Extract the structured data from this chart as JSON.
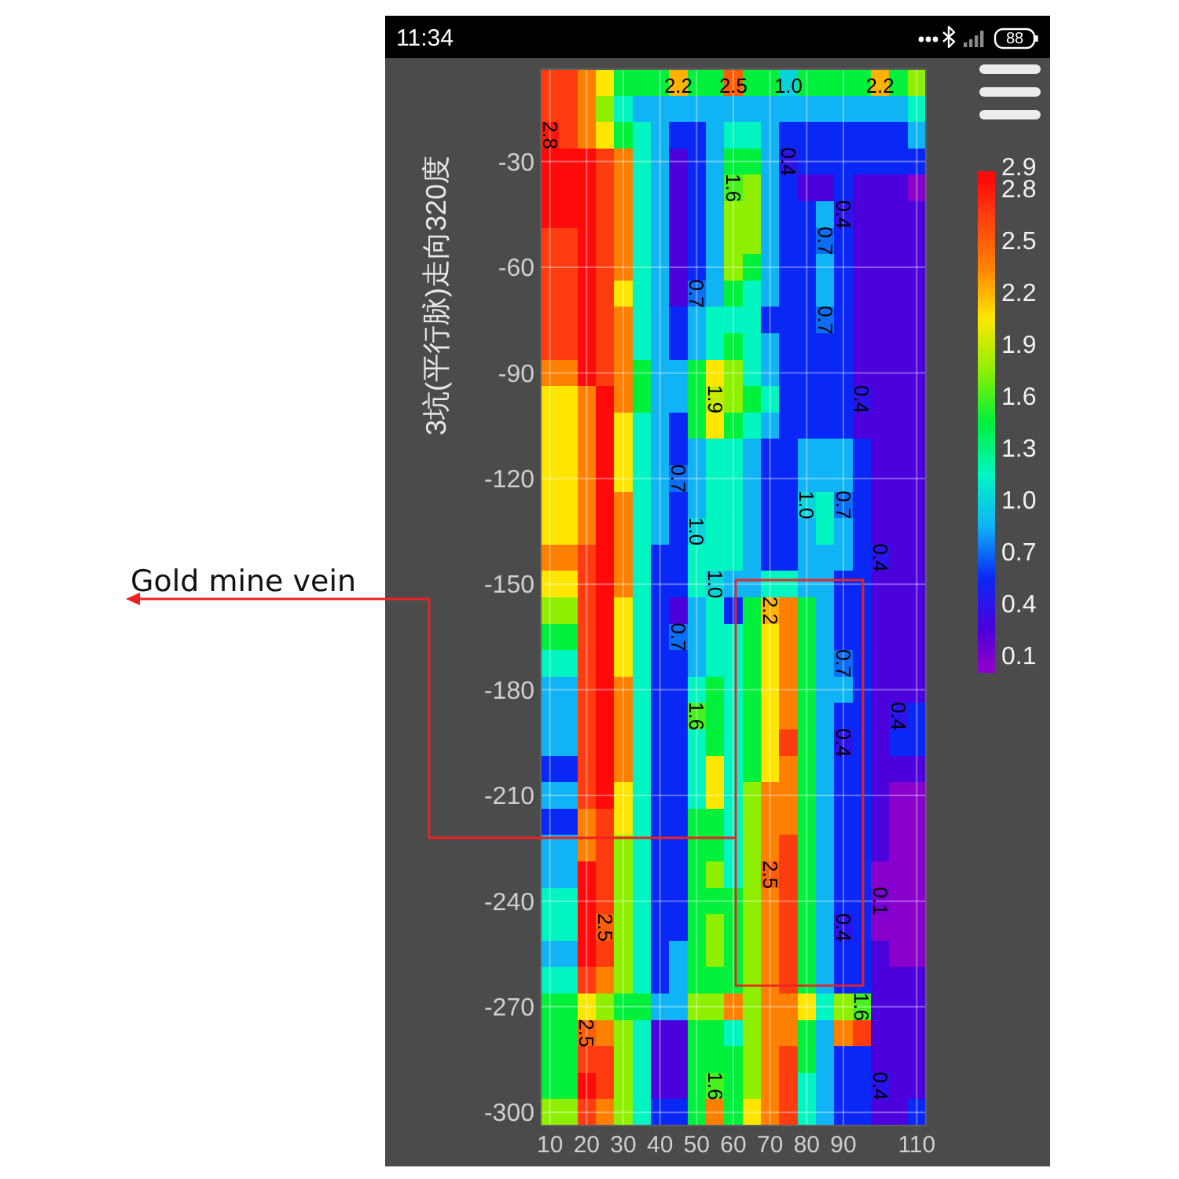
{
  "chart_data": {
    "type": "heatmap",
    "ylabel": "3坑(平行脉)走向320度",
    "categories": [
      "10",
      null,
      "20",
      null,
      "30",
      null,
      "40",
      null,
      "50",
      null,
      "60",
      null,
      "70",
      null,
      "80",
      null,
      "90",
      null,
      null,
      null,
      "110"
    ],
    "y_categories": [
      null,
      null,
      null,
      "-30",
      null,
      null,
      null,
      "-60",
      null,
      null,
      null,
      "-90",
      null,
      null,
      null,
      "-120",
      null,
      null,
      null,
      "-150",
      null,
      null,
      null,
      "-180",
      null,
      null,
      null,
      "-210",
      null,
      null,
      null,
      "-240",
      null,
      null,
      null,
      "-270",
      null,
      null,
      null,
      "-300"
    ],
    "cells": [
      [
        2.65,
        2.65,
        2.35,
        2.05,
        1.45,
        1.45,
        1.45,
        2.2,
        1.45,
        1.45,
        2.5,
        1.45,
        1.45,
        1.0,
        1.45,
        1.45,
        1.45,
        1.45,
        2.2,
        1.45,
        1.75
      ],
      [
        2.65,
        2.65,
        2.35,
        1.75,
        1.15,
        0.85,
        0.85,
        0.85,
        0.85,
        0.85,
        0.85,
        0.85,
        0.85,
        0.85,
        0.85,
        0.85,
        0.85,
        0.85,
        0.85,
        0.85,
        1.15
      ],
      [
        2.8,
        2.65,
        2.35,
        2.05,
        1.45,
        1.15,
        0.85,
        0.55,
        0.55,
        0.85,
        1.15,
        1.15,
        0.85,
        0.55,
        0.55,
        0.55,
        0.55,
        0.55,
        0.55,
        0.55,
        0.85
      ],
      [
        2.85,
        2.85,
        2.85,
        2.65,
        2.35,
        1.15,
        0.85,
        0.25,
        0.55,
        0.85,
        1.45,
        1.45,
        0.85,
        0.4,
        0.55,
        0.55,
        0.55,
        0.55,
        0.55,
        0.55,
        0.55
      ],
      [
        2.85,
        2.85,
        2.85,
        2.65,
        2.35,
        1.15,
        0.85,
        0.25,
        0.55,
        0.85,
        1.6,
        1.75,
        0.85,
        0.55,
        0.25,
        0.25,
        0.55,
        0.25,
        0.25,
        0.25,
        0.05
      ],
      [
        2.85,
        2.85,
        2.85,
        2.65,
        2.35,
        1.15,
        0.85,
        0.25,
        0.55,
        0.85,
        1.75,
        1.75,
        0.85,
        0.55,
        0.55,
        0.85,
        0.4,
        0.25,
        0.25,
        0.25,
        0.25
      ],
      [
        2.65,
        2.65,
        2.85,
        2.65,
        2.35,
        1.15,
        0.85,
        0.25,
        0.55,
        0.85,
        1.75,
        1.75,
        0.85,
        0.55,
        0.55,
        0.7,
        0.55,
        0.25,
        0.25,
        0.25,
        0.25
      ],
      [
        2.65,
        2.65,
        2.85,
        2.65,
        2.35,
        1.15,
        0.85,
        0.25,
        0.55,
        0.85,
        1.75,
        1.45,
        0.85,
        0.55,
        0.55,
        0.85,
        0.55,
        0.25,
        0.25,
        0.25,
        0.25
      ],
      [
        2.65,
        2.65,
        2.85,
        2.65,
        2.05,
        1.15,
        0.85,
        0.25,
        0.7,
        0.85,
        1.45,
        1.15,
        0.85,
        0.55,
        0.55,
        0.85,
        0.55,
        0.25,
        0.25,
        0.25,
        0.25
      ],
      [
        2.65,
        2.65,
        2.85,
        2.65,
        2.35,
        1.15,
        0.85,
        0.55,
        0.85,
        1.15,
        1.15,
        1.15,
        0.55,
        0.55,
        0.55,
        0.7,
        0.55,
        0.25,
        0.25,
        0.25,
        0.25
      ],
      [
        2.65,
        2.65,
        2.85,
        2.65,
        2.35,
        1.15,
        0.85,
        0.55,
        0.85,
        1.15,
        1.45,
        1.15,
        0.85,
        0.55,
        0.55,
        0.55,
        0.55,
        0.25,
        0.25,
        0.25,
        0.25
      ],
      [
        2.35,
        2.35,
        2.85,
        2.65,
        2.35,
        1.45,
        0.85,
        0.85,
        1.45,
        2.05,
        1.75,
        1.15,
        0.85,
        0.55,
        0.55,
        0.55,
        0.55,
        0.25,
        0.25,
        0.25,
        0.25
      ],
      [
        2.05,
        2.05,
        2.35,
        2.85,
        2.35,
        1.45,
        0.85,
        0.85,
        1.45,
        1.9,
        1.75,
        1.45,
        1.15,
        0.55,
        0.55,
        0.55,
        0.55,
        0.4,
        0.25,
        0.25,
        0.25
      ],
      [
        2.05,
        2.05,
        2.35,
        2.85,
        2.05,
        1.15,
        0.85,
        0.55,
        1.45,
        2.05,
        1.45,
        1.15,
        0.85,
        0.55,
        0.55,
        0.55,
        0.55,
        0.25,
        0.25,
        0.25,
        0.25
      ],
      [
        2.05,
        2.05,
        2.35,
        2.85,
        2.05,
        1.15,
        0.85,
        0.55,
        0.85,
        1.15,
        1.15,
        0.85,
        0.55,
        0.55,
        0.85,
        0.85,
        0.85,
        0.55,
        0.25,
        0.25,
        0.25
      ],
      [
        2.05,
        2.05,
        2.35,
        2.85,
        2.05,
        1.15,
        0.85,
        0.7,
        0.85,
        1.15,
        1.15,
        0.85,
        0.55,
        0.55,
        0.85,
        0.85,
        0.85,
        0.55,
        0.25,
        0.25,
        0.25
      ],
      [
        2.05,
        2.05,
        2.35,
        2.85,
        2.35,
        1.15,
        0.85,
        0.55,
        0.85,
        1.15,
        1.15,
        0.85,
        0.55,
        0.55,
        1.0,
        1.15,
        0.7,
        0.55,
        0.25,
        0.25,
        0.25
      ],
      [
        2.05,
        2.05,
        2.35,
        2.85,
        2.35,
        1.15,
        0.85,
        0.55,
        1.0,
        1.15,
        1.15,
        0.85,
        0.55,
        0.55,
        0.85,
        1.15,
        0.85,
        0.55,
        0.25,
        0.25,
        0.25
      ],
      [
        2.35,
        2.35,
        2.65,
        2.85,
        2.35,
        1.15,
        0.55,
        0.55,
        1.15,
        1.15,
        1.15,
        0.85,
        0.55,
        0.55,
        0.85,
        0.85,
        0.85,
        0.55,
        0.4,
        0.25,
        0.25
      ],
      [
        2.05,
        2.05,
        2.65,
        2.85,
        2.35,
        1.15,
        0.55,
        0.55,
        1.15,
        1.0,
        0.85,
        0.85,
        1.15,
        1.15,
        0.85,
        0.85,
        0.55,
        0.55,
        0.25,
        0.25,
        0.25
      ],
      [
        1.75,
        1.75,
        2.65,
        2.85,
        2.05,
        1.15,
        0.55,
        0.25,
        0.85,
        1.15,
        0.55,
        1.45,
        2.2,
        2.35,
        1.45,
        0.85,
        0.55,
        0.55,
        0.25,
        0.25,
        0.25
      ],
      [
        1.45,
        1.45,
        2.65,
        2.85,
        2.05,
        1.15,
        0.55,
        0.7,
        0.85,
        1.15,
        1.15,
        1.45,
        2.05,
        2.35,
        1.45,
        0.85,
        0.55,
        0.55,
        0.25,
        0.25,
        0.25
      ],
      [
        1.15,
        1.15,
        2.65,
        2.85,
        2.05,
        1.15,
        0.55,
        0.55,
        0.85,
        1.15,
        1.15,
        1.45,
        2.05,
        2.35,
        1.45,
        0.85,
        0.7,
        0.55,
        0.25,
        0.25,
        0.25
      ],
      [
        0.85,
        0.85,
        2.65,
        2.85,
        2.35,
        1.15,
        0.55,
        0.55,
        1.15,
        1.45,
        1.15,
        1.45,
        2.05,
        2.35,
        1.45,
        0.85,
        0.85,
        0.55,
        0.25,
        0.25,
        0.25
      ],
      [
        0.85,
        0.85,
        2.65,
        2.85,
        2.35,
        1.15,
        0.55,
        0.55,
        1.6,
        1.45,
        1.15,
        1.45,
        2.05,
        2.35,
        1.45,
        0.85,
        0.55,
        0.55,
        0.25,
        0.4,
        0.55
      ],
      [
        0.85,
        0.85,
        2.65,
        2.85,
        2.35,
        1.15,
        0.55,
        0.55,
        1.15,
        1.45,
        1.15,
        1.45,
        2.05,
        2.65,
        1.45,
        0.85,
        0.4,
        0.55,
        0.25,
        0.55,
        0.55
      ],
      [
        0.55,
        0.55,
        2.65,
        2.85,
        2.35,
        1.15,
        0.55,
        0.55,
        1.15,
        2.05,
        1.15,
        1.45,
        2.05,
        2.35,
        1.45,
        0.85,
        0.55,
        0.55,
        0.25,
        0.25,
        0.25
      ],
      [
        0.85,
        0.85,
        2.65,
        2.85,
        2.05,
        1.15,
        0.55,
        0.55,
        1.15,
        2.05,
        1.15,
        1.75,
        2.35,
        2.35,
        1.45,
        0.85,
        0.55,
        0.55,
        0.25,
        0.05,
        0.05
      ],
      [
        0.55,
        0.55,
        2.35,
        2.65,
        2.05,
        1.15,
        0.55,
        0.55,
        1.45,
        1.45,
        1.15,
        1.75,
        2.35,
        2.35,
        1.45,
        0.85,
        0.55,
        0.55,
        0.25,
        0.05,
        0.05
      ],
      [
        0.85,
        0.85,
        2.35,
        2.65,
        1.75,
        1.15,
        0.55,
        0.55,
        1.45,
        1.45,
        1.15,
        1.75,
        2.35,
        2.65,
        1.45,
        0.85,
        0.55,
        0.55,
        0.25,
        0.05,
        0.05
      ],
      [
        0.85,
        0.85,
        2.85,
        2.65,
        1.75,
        1.15,
        0.55,
        0.55,
        1.45,
        1.75,
        1.15,
        1.75,
        2.5,
        2.65,
        1.45,
        0.85,
        0.55,
        0.55,
        0.05,
        0.05,
        0.05
      ],
      [
        1.15,
        1.15,
        2.85,
        2.65,
        1.75,
        1.15,
        0.55,
        0.55,
        1.45,
        1.45,
        1.45,
        1.75,
        2.35,
        2.65,
        1.45,
        0.85,
        0.55,
        0.55,
        0.1,
        0.05,
        0.05
      ],
      [
        1.15,
        1.15,
        2.85,
        2.5,
        1.75,
        1.15,
        0.55,
        0.55,
        1.45,
        1.75,
        1.45,
        1.75,
        2.35,
        2.65,
        1.45,
        0.85,
        0.4,
        0.55,
        0.05,
        0.05,
        0.05
      ],
      [
        0.85,
        0.85,
        2.85,
        2.65,
        1.75,
        1.15,
        0.55,
        0.85,
        1.45,
        1.75,
        1.45,
        1.75,
        2.35,
        2.65,
        1.45,
        0.85,
        0.55,
        0.55,
        0.25,
        0.05,
        0.05
      ],
      [
        1.15,
        1.15,
        2.65,
        2.35,
        1.75,
        1.15,
        0.55,
        0.85,
        1.45,
        1.45,
        1.45,
        1.75,
        2.35,
        2.65,
        1.45,
        0.85,
        0.55,
        0.55,
        0.25,
        0.25,
        0.25
      ],
      [
        1.45,
        1.45,
        2.05,
        1.75,
        1.45,
        1.45,
        0.85,
        0.85,
        1.75,
        1.75,
        2.35,
        1.75,
        2.35,
        2.35,
        2.05,
        1.15,
        1.75,
        1.6,
        0.25,
        0.25,
        0.25
      ],
      [
        1.45,
        1.45,
        2.5,
        2.35,
        1.75,
        1.15,
        0.25,
        0.25,
        1.45,
        1.45,
        1.15,
        1.75,
        2.35,
        2.35,
        1.45,
        0.85,
        2.35,
        2.65,
        0.25,
        0.25,
        0.25
      ],
      [
        1.45,
        1.45,
        2.65,
        2.65,
        1.75,
        1.15,
        0.25,
        0.25,
        1.45,
        1.45,
        1.45,
        1.75,
        2.35,
        2.65,
        1.45,
        0.85,
        0.55,
        0.55,
        0.25,
        0.25,
        0.25
      ],
      [
        1.45,
        1.45,
        2.85,
        2.65,
        1.75,
        1.15,
        0.25,
        0.25,
        1.45,
        1.6,
        1.45,
        1.75,
        2.35,
        2.65,
        1.15,
        0.85,
        0.55,
        0.55,
        0.4,
        0.25,
        0.25
      ],
      [
        1.75,
        1.75,
        2.65,
        2.35,
        1.75,
        1.15,
        0.55,
        0.55,
        1.45,
        2.35,
        1.45,
        2.05,
        2.35,
        2.65,
        1.15,
        0.85,
        0.55,
        0.55,
        0.25,
        0.25,
        0.55
      ]
    ],
    "cell_labels": [
      [
        null,
        null,
        null,
        null,
        null,
        null,
        null,
        "2.2",
        null,
        null,
        "2.5",
        null,
        null,
        "1.0",
        null,
        null,
        null,
        null,
        "2.2",
        null,
        null
      ],
      [
        null,
        null,
        null,
        null,
        null,
        null,
        null,
        null,
        null,
        null,
        null,
        null,
        null,
        null,
        null,
        null,
        null,
        null,
        null,
        null,
        null
      ],
      [
        "2.8",
        null,
        null,
        null,
        null,
        null,
        null,
        null,
        null,
        null,
        null,
        null,
        null,
        null,
        null,
        null,
        null,
        null,
        null,
        null,
        null
      ],
      [
        null,
        null,
        null,
        null,
        null,
        null,
        null,
        null,
        null,
        null,
        null,
        null,
        null,
        "0.4",
        null,
        null,
        null,
        null,
        null,
        null,
        null
      ],
      [
        null,
        null,
        null,
        null,
        null,
        null,
        null,
        null,
        null,
        null,
        "1.6",
        null,
        null,
        null,
        null,
        null,
        null,
        null,
        null,
        null,
        null
      ],
      [
        null,
        null,
        null,
        null,
        null,
        null,
        null,
        null,
        null,
        null,
        null,
        null,
        null,
        null,
        null,
        null,
        "0.4",
        null,
        null,
        null,
        null
      ],
      [
        null,
        null,
        null,
        null,
        null,
        null,
        null,
        null,
        null,
        null,
        null,
        null,
        null,
        null,
        null,
        "0.7",
        null,
        null,
        null,
        null,
        null
      ],
      [
        null,
        null,
        null,
        null,
        null,
        null,
        null,
        null,
        null,
        null,
        null,
        null,
        null,
        null,
        null,
        null,
        null,
        null,
        null,
        null,
        null
      ],
      [
        null,
        null,
        null,
        null,
        null,
        null,
        null,
        null,
        "0.7",
        null,
        null,
        null,
        null,
        null,
        null,
        null,
        null,
        null,
        null,
        null,
        null
      ],
      [
        null,
        null,
        null,
        null,
        null,
        null,
        null,
        null,
        null,
        null,
        null,
        null,
        null,
        null,
        null,
        "0.7",
        null,
        null,
        null,
        null,
        null
      ],
      [
        null,
        null,
        null,
        null,
        null,
        null,
        null,
        null,
        null,
        null,
        null,
        null,
        null,
        null,
        null,
        null,
        null,
        null,
        null,
        null,
        null
      ],
      [
        null,
        null,
        null,
        null,
        null,
        null,
        null,
        null,
        null,
        null,
        null,
        null,
        null,
        null,
        null,
        null,
        null,
        null,
        null,
        null,
        null
      ],
      [
        null,
        null,
        null,
        null,
        null,
        null,
        null,
        null,
        null,
        "1.9",
        null,
        null,
        null,
        null,
        null,
        null,
        null,
        "0.4",
        null,
        null,
        null
      ],
      [
        null,
        null,
        null,
        null,
        null,
        null,
        null,
        null,
        null,
        null,
        null,
        null,
        null,
        null,
        null,
        null,
        null,
        null,
        null,
        null,
        null
      ],
      [
        null,
        null,
        null,
        null,
        null,
        null,
        null,
        null,
        null,
        null,
        null,
        null,
        null,
        null,
        null,
        null,
        null,
        null,
        null,
        null,
        null
      ],
      [
        null,
        null,
        null,
        null,
        null,
        null,
        null,
        "0.7",
        null,
        null,
        null,
        null,
        null,
        null,
        null,
        null,
        null,
        null,
        null,
        null,
        null
      ],
      [
        null,
        null,
        null,
        null,
        null,
        null,
        null,
        null,
        null,
        null,
        null,
        null,
        null,
        null,
        "1.0",
        null,
        "0.7",
        null,
        null,
        null,
        null
      ],
      [
        null,
        null,
        null,
        null,
        null,
        null,
        null,
        null,
        "1.0",
        null,
        null,
        null,
        null,
        null,
        null,
        null,
        null,
        null,
        null,
        null,
        null
      ],
      [
        null,
        null,
        null,
        null,
        null,
        null,
        null,
        null,
        null,
        null,
        null,
        null,
        null,
        null,
        null,
        null,
        null,
        null,
        "0.4",
        null,
        null
      ],
      [
        null,
        null,
        null,
        null,
        null,
        null,
        null,
        null,
        null,
        "1.0",
        null,
        null,
        null,
        null,
        null,
        null,
        null,
        null,
        null,
        null,
        null
      ],
      [
        null,
        null,
        null,
        null,
        null,
        null,
        null,
        null,
        null,
        null,
        null,
        null,
        "2.2",
        null,
        null,
        null,
        null,
        null,
        null,
        null,
        null
      ],
      [
        null,
        null,
        null,
        null,
        null,
        null,
        null,
        "0.7",
        null,
        null,
        null,
        null,
        null,
        null,
        null,
        null,
        null,
        null,
        null,
        null,
        null
      ],
      [
        null,
        null,
        null,
        null,
        null,
        null,
        null,
        null,
        null,
        null,
        null,
        null,
        null,
        null,
        null,
        null,
        "0.7",
        null,
        null,
        null,
        null
      ],
      [
        null,
        null,
        null,
        null,
        null,
        null,
        null,
        null,
        null,
        null,
        null,
        null,
        null,
        null,
        null,
        null,
        null,
        null,
        null,
        null,
        null
      ],
      [
        null,
        null,
        null,
        null,
        null,
        null,
        null,
        null,
        "1.6",
        null,
        null,
        null,
        null,
        null,
        null,
        null,
        null,
        null,
        null,
        "0.4",
        null
      ],
      [
        null,
        null,
        null,
        null,
        null,
        null,
        null,
        null,
        null,
        null,
        null,
        null,
        null,
        null,
        null,
        null,
        "0.4",
        null,
        null,
        null,
        null
      ],
      [
        null,
        null,
        null,
        null,
        null,
        null,
        null,
        null,
        null,
        null,
        null,
        null,
        null,
        null,
        null,
        null,
        null,
        null,
        null,
        null,
        null
      ],
      [
        null,
        null,
        null,
        null,
        null,
        null,
        null,
        null,
        null,
        null,
        null,
        null,
        null,
        null,
        null,
        null,
        null,
        null,
        null,
        null,
        null
      ],
      [
        null,
        null,
        null,
        null,
        null,
        null,
        null,
        null,
        null,
        null,
        null,
        null,
        null,
        null,
        null,
        null,
        null,
        null,
        null,
        null,
        null
      ],
      [
        null,
        null,
        null,
        null,
        null,
        null,
        null,
        null,
        null,
        null,
        null,
        null,
        null,
        null,
        null,
        null,
        null,
        null,
        null,
        null,
        null
      ],
      [
        null,
        null,
        null,
        null,
        null,
        null,
        null,
        null,
        null,
        null,
        null,
        null,
        "2.5",
        null,
        null,
        null,
        null,
        null,
        null,
        null,
        null
      ],
      [
        null,
        null,
        null,
        null,
        null,
        null,
        null,
        null,
        null,
        null,
        null,
        null,
        null,
        null,
        null,
        null,
        null,
        null,
        "0.1",
        null,
        null
      ],
      [
        null,
        null,
        null,
        "2.5",
        null,
        null,
        null,
        null,
        null,
        null,
        null,
        null,
        null,
        null,
        null,
        null,
        "0.4",
        null,
        null,
        null,
        null
      ],
      [
        null,
        null,
        null,
        null,
        null,
        null,
        null,
        null,
        null,
        null,
        null,
        null,
        null,
        null,
        null,
        null,
        null,
        null,
        null,
        null,
        null
      ],
      [
        null,
        null,
        null,
        null,
        null,
        null,
        null,
        null,
        null,
        null,
        null,
        null,
        null,
        null,
        null,
        null,
        null,
        null,
        null,
        null,
        null
      ],
      [
        null,
        null,
        null,
        null,
        null,
        null,
        null,
        null,
        null,
        null,
        null,
        null,
        null,
        null,
        null,
        null,
        null,
        "1.6",
        null,
        null,
        null
      ],
      [
        null,
        null,
        "2.5",
        null,
        null,
        null,
        null,
        null,
        null,
        null,
        null,
        null,
        null,
        null,
        null,
        null,
        null,
        null,
        null,
        null,
        null
      ],
      [
        null,
        null,
        null,
        null,
        null,
        null,
        null,
        null,
        null,
        null,
        null,
        null,
        null,
        null,
        null,
        null,
        null,
        null,
        null,
        null,
        null
      ],
      [
        null,
        null,
        null,
        null,
        null,
        null,
        null,
        null,
        null,
        "1.6",
        null,
        null,
        null,
        null,
        null,
        null,
        null,
        null,
        "0.4",
        null,
        null
      ],
      [
        null,
        null,
        null,
        null,
        null,
        null,
        null,
        null,
        null,
        null,
        null,
        null,
        null,
        null,
        null,
        null,
        null,
        null,
        null,
        null,
        null
      ]
    ],
    "clim": [
      0,
      2.9
    ],
    "cticks": [
      0.1,
      0.4,
      0.7,
      {
        "value": 1,
        "label": "1.0"
      },
      1.3,
      1.6,
      1.9,
      2.2,
      2.5,
      2.8,
      2.9
    ],
    "colors": [
      "#8800cc",
      "#4c00dc",
      "#0a28f5",
      "#10b4f5",
      "#00f5c0",
      "#00f03c",
      "#8ef000",
      "#ffe600",
      "#ff8000",
      "#ff3c10",
      "#ff0a0a"
    ],
    "grid": true,
    "annotations": [
      "Gold mine vein",
      "11:34",
      "88"
    ]
  }
}
